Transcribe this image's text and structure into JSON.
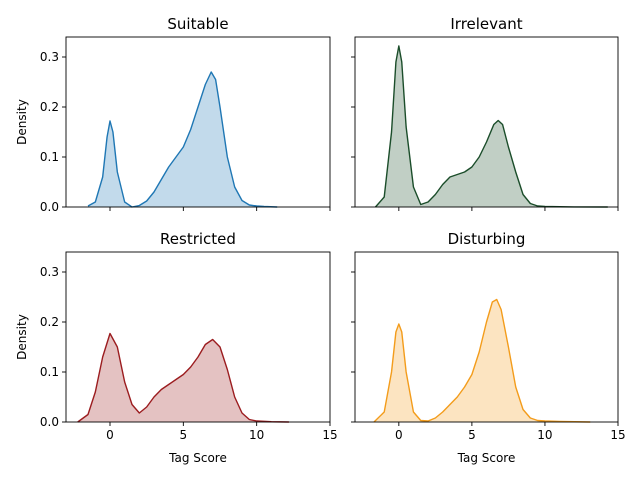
{
  "chart_data": [
    {
      "type": "area",
      "title": "Suitable",
      "xlabel": "",
      "ylabel": "Density",
      "color": "#1f77b4",
      "xlim": [
        -3,
        15
      ],
      "ylim": [
        0,
        0.34
      ],
      "xticks": [
        0,
        5,
        10,
        15
      ],
      "yticks": [
        0.0,
        0.1,
        0.2,
        0.3
      ],
      "x": [
        -1.5,
        -1.0,
        -0.5,
        -0.2,
        0.0,
        0.2,
        0.5,
        1.0,
        1.5,
        2.0,
        2.5,
        3.0,
        3.5,
        4.0,
        4.5,
        5.0,
        5.5,
        6.0,
        6.5,
        6.9,
        7.2,
        7.5,
        8.0,
        8.5,
        9.0,
        9.5,
        10.0,
        10.5,
        11.4
      ],
      "y": [
        0.002,
        0.01,
        0.06,
        0.14,
        0.172,
        0.15,
        0.07,
        0.01,
        0.0,
        0.003,
        0.012,
        0.03,
        0.055,
        0.08,
        0.1,
        0.12,
        0.155,
        0.2,
        0.245,
        0.27,
        0.255,
        0.2,
        0.1,
        0.04,
        0.013,
        0.004,
        0.002,
        0.001,
        0.0
      ]
    },
    {
      "type": "area",
      "title": "Irrelevant",
      "xlabel": "",
      "ylabel": "",
      "color": "#1b4d2a",
      "xlim": [
        -3,
        15
      ],
      "ylim": [
        0,
        0.34
      ],
      "xticks": [
        0,
        5,
        10,
        15
      ],
      "yticks": [
        0.0,
        0.1,
        0.2,
        0.3
      ],
      "x": [
        -1.6,
        -1.0,
        -0.5,
        -0.2,
        0.0,
        0.2,
        0.5,
        1.0,
        1.5,
        2.0,
        2.5,
        3.0,
        3.5,
        4.0,
        4.5,
        5.0,
        5.5,
        6.0,
        6.5,
        6.8,
        7.1,
        7.5,
        8.0,
        8.5,
        9.0,
        9.5,
        10.0,
        11.0,
        12.0,
        14.3
      ],
      "y": [
        0.0,
        0.02,
        0.15,
        0.29,
        0.322,
        0.29,
        0.16,
        0.04,
        0.005,
        0.01,
        0.025,
        0.045,
        0.06,
        0.065,
        0.07,
        0.08,
        0.1,
        0.13,
        0.165,
        0.173,
        0.165,
        0.12,
        0.07,
        0.025,
        0.007,
        0.002,
        0.001,
        0.0005,
        0.0002,
        0.0
      ]
    },
    {
      "type": "area",
      "title": "Restricted",
      "xlabel": "Tag Score",
      "ylabel": "Density",
      "color": "#9b1c1f",
      "xlim": [
        -3,
        15
      ],
      "ylim": [
        0,
        0.34
      ],
      "xticks": [
        0,
        5,
        10,
        15
      ],
      "yticks": [
        0.0,
        0.1,
        0.2,
        0.3
      ],
      "x": [
        -2.2,
        -1.5,
        -1.0,
        -0.5,
        0.0,
        0.5,
        1.0,
        1.5,
        2.0,
        2.5,
        3.0,
        3.5,
        4.0,
        4.5,
        5.0,
        5.5,
        6.0,
        6.5,
        7.0,
        7.5,
        8.0,
        8.5,
        9.0,
        9.5,
        10.0,
        11.0,
        12.2
      ],
      "y": [
        0.0,
        0.015,
        0.06,
        0.13,
        0.177,
        0.15,
        0.08,
        0.035,
        0.018,
        0.03,
        0.05,
        0.065,
        0.075,
        0.085,
        0.095,
        0.11,
        0.13,
        0.155,
        0.165,
        0.15,
        0.105,
        0.05,
        0.018,
        0.005,
        0.002,
        0.0005,
        0.0
      ]
    },
    {
      "type": "area",
      "title": "Disturbing",
      "xlabel": "Tag Score",
      "ylabel": "",
      "color": "#f39c1b",
      "xlim": [
        -3,
        15
      ],
      "ylim": [
        0,
        0.34
      ],
      "xticks": [
        0,
        5,
        10,
        15
      ],
      "yticks": [
        0.0,
        0.1,
        0.2,
        0.3
      ],
      "x": [
        -1.7,
        -1.0,
        -0.5,
        -0.2,
        0.0,
        0.2,
        0.5,
        1.0,
        1.5,
        2.0,
        2.5,
        3.0,
        3.5,
        4.0,
        4.5,
        5.0,
        5.5,
        6.0,
        6.4,
        6.7,
        7.0,
        7.5,
        8.0,
        8.5,
        9.0,
        9.5,
        10.0,
        11.0,
        13.1
      ],
      "y": [
        0.0,
        0.02,
        0.1,
        0.18,
        0.196,
        0.18,
        0.1,
        0.02,
        0.003,
        0.002,
        0.008,
        0.02,
        0.035,
        0.05,
        0.07,
        0.095,
        0.14,
        0.2,
        0.24,
        0.245,
        0.225,
        0.15,
        0.07,
        0.025,
        0.008,
        0.003,
        0.002,
        0.001,
        0.0
      ]
    }
  ]
}
